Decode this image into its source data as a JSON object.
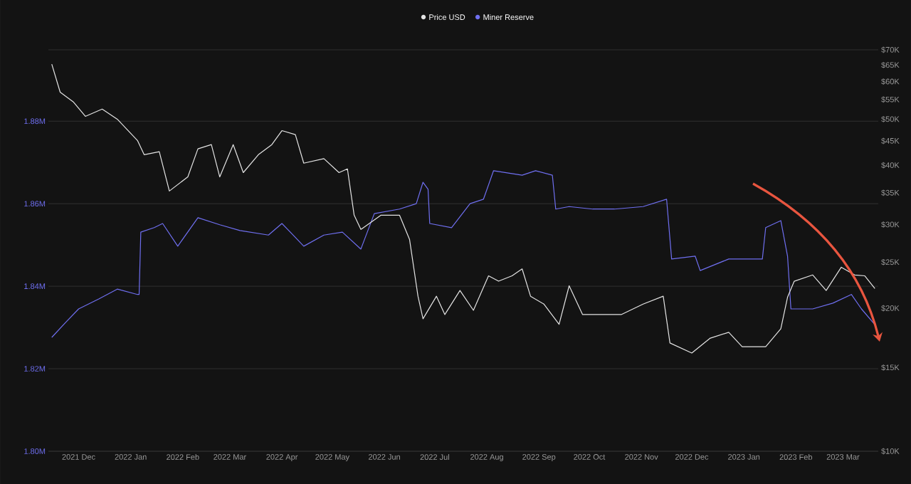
{
  "chart_data": {
    "type": "line",
    "legend": "top",
    "grid": "y",
    "log": "y2",
    "xlim": [
      "2021-11-13",
      "2023-03-22"
    ],
    "xticks": [
      {
        "value": "2021-12-01",
        "label": "2021 Dec"
      },
      {
        "value": "2022-01-01",
        "label": "2022 Jan"
      },
      {
        "value": "2022-02-01",
        "label": "2022 Feb"
      },
      {
        "value": "2022-03-01",
        "label": "2022 Mar"
      },
      {
        "value": "2022-04-01",
        "label": "2022 Apr"
      },
      {
        "value": "2022-05-01",
        "label": "2022 May"
      },
      {
        "value": "2022-06-01",
        "label": "2022 Jun"
      },
      {
        "value": "2022-07-01",
        "label": "2022 Jul"
      },
      {
        "value": "2022-08-01",
        "label": "2022 Aug"
      },
      {
        "value": "2022-09-01",
        "label": "2022 Sep"
      },
      {
        "value": "2022-10-01",
        "label": "2022 Oct"
      },
      {
        "value": "2022-11-01",
        "label": "2022 Nov"
      },
      {
        "value": "2022-12-01",
        "label": "2022 Dec"
      },
      {
        "value": "2023-01-01",
        "label": "2023 Jan"
      },
      {
        "value": "2023-02-01",
        "label": "2023 Feb"
      },
      {
        "value": "2023-03-01",
        "label": "2023 Mar"
      }
    ],
    "ylim": [
      1800000,
      1897300
    ],
    "yticks": [
      {
        "value": 1800000,
        "label": "1.80M"
      },
      {
        "value": 1820000,
        "label": "1.82M"
      },
      {
        "value": 1840000,
        "label": "1.84M"
      },
      {
        "value": 1860000,
        "label": "1.86M"
      },
      {
        "value": 1880000,
        "label": "1.88M"
      }
    ],
    "y2lim": [
      10000,
      70000
    ],
    "y2ticks": [
      {
        "value": 10000,
        "label": "$10K"
      },
      {
        "value": 15000,
        "label": "$15K"
      },
      {
        "value": 20000,
        "label": "$20K"
      },
      {
        "value": 25000,
        "label": "$25K"
      },
      {
        "value": 30000,
        "label": "$30K"
      },
      {
        "value": 35000,
        "label": "$35K"
      },
      {
        "value": 40000,
        "label": "$40K"
      },
      {
        "value": 45000,
        "label": "$45K"
      },
      {
        "value": 50000,
        "label": "$50K"
      },
      {
        "value": 55000,
        "label": "$55K"
      },
      {
        "value": 60000,
        "label": "$60K"
      },
      {
        "value": 65000,
        "label": "$65K"
      },
      {
        "value": 70000,
        "label": "$70K"
      }
    ],
    "series": [
      {
        "name": "Price USD",
        "color": "#e4e4e4",
        "axis": "y2",
        "x": [
          "2021-11-15",
          "2021-11-20",
          "2021-11-28",
          "2021-12-05",
          "2021-12-15",
          "2021-12-24",
          "2022-01-05",
          "2022-01-09",
          "2022-01-18",
          "2022-01-24",
          "2022-02-04",
          "2022-02-10",
          "2022-02-18",
          "2022-02-23",
          "2022-03-03",
          "2022-03-09",
          "2022-03-18",
          "2022-03-26",
          "2022-04-01",
          "2022-04-09",
          "2022-04-14",
          "2022-04-26",
          "2022-05-05",
          "2022-05-10",
          "2022-05-14",
          "2022-05-18",
          "2022-05-30",
          "2022-06-10",
          "2022-06-16",
          "2022-06-21",
          "2022-06-24",
          "2022-07-02",
          "2022-07-07",
          "2022-07-16",
          "2022-07-24",
          "2022-08-02",
          "2022-08-08",
          "2022-08-16",
          "2022-08-22",
          "2022-08-27",
          "2022-09-04",
          "2022-09-13",
          "2022-09-19",
          "2022-09-27",
          "2022-10-08",
          "2022-10-20",
          "2022-11-02",
          "2022-11-14",
          "2022-11-18",
          "2022-12-01",
          "2022-12-12",
          "2022-12-23",
          "2022-12-31",
          "2023-01-14",
          "2023-01-23",
          "2023-01-27",
          "2023-01-31",
          "2023-02-11",
          "2023-02-19",
          "2023-02-28",
          "2023-03-08",
          "2023-03-14",
          "2023-03-20"
        ],
        "values": [
          65300,
          57000,
          54300,
          50700,
          52500,
          50000,
          45100,
          42100,
          42700,
          35300,
          37800,
          43300,
          44200,
          37800,
          44200,
          38600,
          42100,
          44200,
          47300,
          46400,
          40400,
          41300,
          38600,
          39300,
          31400,
          29300,
          31400,
          31400,
          27900,
          21200,
          19000,
          21200,
          19400,
          21800,
          19800,
          23400,
          22800,
          23400,
          24200,
          21200,
          20400,
          18500,
          22300,
          19400,
          19400,
          19400,
          20400,
          21200,
          16900,
          16100,
          17300,
          17800,
          16600,
          16600,
          18100,
          21100,
          22800,
          23500,
          21800,
          24400,
          23500,
          23400,
          22000
        ]
      },
      {
        "name": "Miner Reserve",
        "color": "#6f6ff0",
        "x": [
          "2021-11-15",
          "2021-11-23",
          "2021-12-01",
          "2021-12-13",
          "2021-12-24",
          "2022-01-05",
          "2022-01-06",
          "2022-01-07",
          "2022-01-15",
          "2022-01-20",
          "2022-01-29",
          "2022-02-10",
          "2022-02-23",
          "2022-03-07",
          "2022-03-24",
          "2022-04-01",
          "2022-04-06",
          "2022-04-14",
          "2022-04-26",
          "2022-05-07",
          "2022-05-18",
          "2022-05-26",
          "2022-06-10",
          "2022-06-20",
          "2022-06-24",
          "2022-06-27",
          "2022-06-28",
          "2022-07-11",
          "2022-07-22",
          "2022-07-30",
          "2022-08-05",
          "2022-08-22",
          "2022-08-30",
          "2022-09-09",
          "2022-09-11",
          "2022-09-19",
          "2022-10-03",
          "2022-10-16",
          "2022-11-02",
          "2022-11-16",
          "2022-11-19",
          "2022-12-03",
          "2022-12-06",
          "2022-12-23",
          "2023-01-12",
          "2023-01-14",
          "2023-01-23",
          "2023-01-27",
          "2023-01-29",
          "2023-02-11",
          "2023-02-23",
          "2023-03-06",
          "2023-03-12",
          "2023-03-20"
        ],
        "values": [
          1827600,
          1831100,
          1834500,
          1836900,
          1839300,
          1838000,
          1838000,
          1853100,
          1854200,
          1855200,
          1849700,
          1856600,
          1854900,
          1853500,
          1852400,
          1855200,
          1853100,
          1849700,
          1852400,
          1853100,
          1849000,
          1857600,
          1858700,
          1860000,
          1865200,
          1863500,
          1855200,
          1854200,
          1860000,
          1861100,
          1868000,
          1866900,
          1868000,
          1866900,
          1858700,
          1859300,
          1858700,
          1858700,
          1859300,
          1861100,
          1846600,
          1847300,
          1843800,
          1846600,
          1846600,
          1854200,
          1855900,
          1847300,
          1834500,
          1834500,
          1835900,
          1838000,
          1834500,
          1830700
        ]
      }
    ]
  }
}
